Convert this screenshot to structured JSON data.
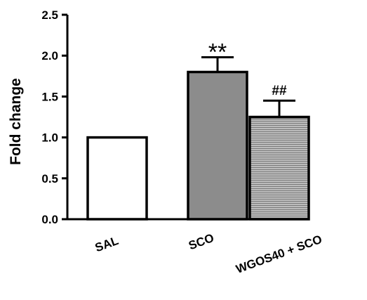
{
  "chart_data": {
    "type": "bar",
    "ylabel": "Fold change",
    "ylim": [
      0,
      2.5
    ],
    "yticks": [
      "0.0",
      "0.5",
      "1.0",
      "1.5",
      "2.0",
      "2.5"
    ],
    "categories": [
      "SAL",
      "SCO",
      "WGOS40 + SCO"
    ],
    "values": [
      1.0,
      1.8,
      1.25
    ],
    "errors": [
      0,
      0.18,
      0.2
    ],
    "annotations": [
      "",
      "**",
      "##"
    ],
    "bar_fills": [
      "#ffffff",
      "#8c8c8c",
      "hatch-horizontal"
    ],
    "bar_colors": {
      "edge": "#000000",
      "sco_fill": "#8c8c8c",
      "hatch_line": "#7a7a7a"
    }
  }
}
